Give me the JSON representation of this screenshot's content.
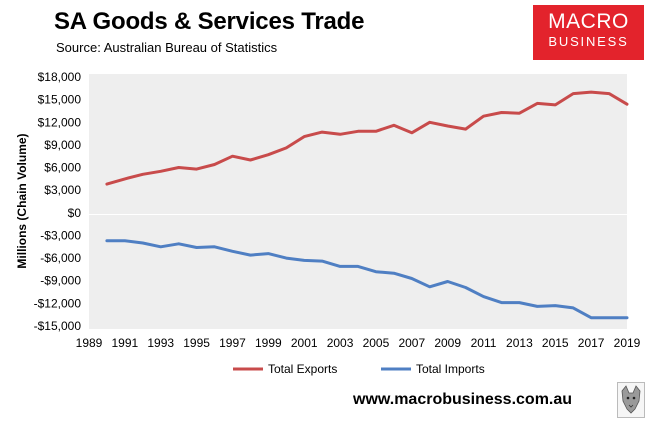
{
  "header": {
    "title": "SA Goods & Services Trade",
    "source": "Source:  Australian Bureau of Statistics"
  },
  "logo": {
    "line1": "MACRO",
    "line2": "BUSINESS"
  },
  "footer": {
    "url": "www.macrobusiness.com.au"
  },
  "colors": {
    "exports": "#c84b4b",
    "imports": "#4f7fc3",
    "panel": "#eeeeee",
    "logo_bg": "#e3232c"
  },
  "chart_data": {
    "type": "line",
    "title": "SA Goods & Services Trade",
    "ylabel": "Millions (Chain Volume)",
    "xlabel": "",
    "xlim": [
      1989,
      2019
    ],
    "ylim": [
      -15000,
      18000
    ],
    "y_ticks": [
      18000,
      15000,
      12000,
      9000,
      6000,
      3000,
      0,
      -3000,
      -6000,
      -9000,
      -12000,
      -15000
    ],
    "y_tick_labels": [
      "$18,000",
      "$15,000",
      "$12,000",
      "$9,000",
      "$6,000",
      "$3,000",
      "$0",
      "-$3,000",
      "-$6,000",
      "-$9,000",
      "-$12,000",
      "-$15,000"
    ],
    "x_ticks": [
      1989,
      1991,
      1993,
      1995,
      1997,
      1999,
      2001,
      2003,
      2005,
      2007,
      2009,
      2011,
      2013,
      2015,
      2017,
      2019
    ],
    "x_tick_labels": [
      "1989",
      "1991",
      "1993",
      "1995",
      "1997",
      "1999",
      "2001",
      "2003",
      "2005",
      "2007",
      "2009",
      "2011",
      "2013",
      "2015",
      "2017",
      "2019"
    ],
    "legend_position": "bottom",
    "x": [
      1990,
      1991,
      1992,
      1993,
      1994,
      1995,
      1996,
      1997,
      1998,
      1999,
      2000,
      2001,
      2002,
      2003,
      2004,
      2005,
      2006,
      2007,
      2008,
      2009,
      2010,
      2011,
      2012,
      2013,
      2014,
      2015,
      2016,
      2017,
      2018,
      2019
    ],
    "series": [
      {
        "name": "Total Exports",
        "color": "#c84b4b",
        "values": [
          3800,
          4500,
          5100,
          5500,
          6000,
          5800,
          6400,
          7500,
          7000,
          7700,
          8600,
          10100,
          10700,
          10400,
          10800,
          10800,
          11600,
          10600,
          12000,
          11500,
          11100,
          12800,
          13300,
          13200,
          14500,
          14300,
          15800,
          16000,
          15800,
          14400
        ]
      },
      {
        "name": "Total Imports",
        "color": "#4f7fc3",
        "values": [
          -3700,
          -3700,
          -4000,
          -4500,
          -4100,
          -4600,
          -4500,
          -5100,
          -5600,
          -5400,
          -6000,
          -6300,
          -6400,
          -7100,
          -7100,
          -7800,
          -8000,
          -8700,
          -9800,
          -9100,
          -9900,
          -11100,
          -11900,
          -11900,
          -12400,
          -12300,
          -12600,
          -13900,
          -13900,
          -13900
        ]
      }
    ]
  }
}
